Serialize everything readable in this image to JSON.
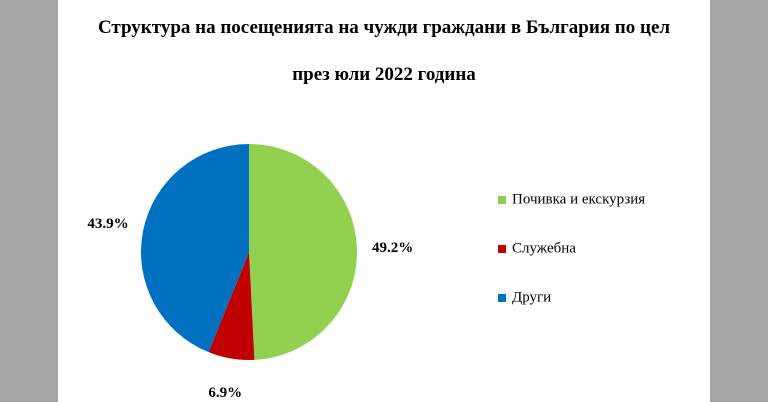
{
  "chart_data": {
    "type": "pie",
    "title": "Структура на посещенията на чужди граждани в България по цел през юли 2022 година",
    "categories": [
      "Почивка и екскурзия",
      "Служебна",
      "Други"
    ],
    "values": [
      49.2,
      6.9,
      43.9
    ],
    "value_labels": [
      "49.2%",
      "6.9%",
      "43.9%"
    ],
    "colors": [
      "#92d050",
      "#c00000",
      "#0070c0"
    ],
    "legend": "right"
  }
}
